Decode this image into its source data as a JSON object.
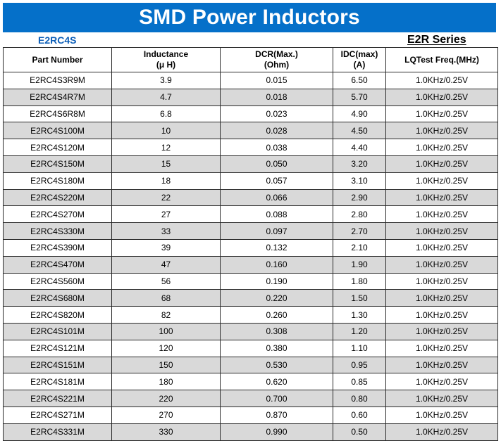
{
  "header": {
    "title": "SMD Power Inductors",
    "model": "E2RC4S",
    "series": "E2R Series"
  },
  "colors": {
    "banner": "#0570c9",
    "model_text": "#0d5fb8",
    "row_shade": "#d9d9d9"
  },
  "table": {
    "columns": [
      {
        "line1": "Part Number",
        "line2": ""
      },
      {
        "line1": "Inductance",
        "line2": "(μ H)"
      },
      {
        "line1": "DCR(Max.)",
        "line2": "(Ohm)"
      },
      {
        "line1": "IDC(max)",
        "line2": "(A)"
      },
      {
        "line1": "LQTest Freq.(MHz)",
        "line2": ""
      }
    ],
    "rows": [
      [
        "E2RC4S3R9M",
        "3.9",
        "0.015",
        "6.50",
        "1.0KHz/0.25V"
      ],
      [
        "E2RC4S4R7M",
        "4.7",
        "0.018",
        "5.70",
        "1.0KHz/0.25V"
      ],
      [
        "E2RC4S6R8M",
        "6.8",
        "0.023",
        "4.90",
        "1.0KHz/0.25V"
      ],
      [
        "E2RC4S100M",
        "10",
        "0.028",
        "4.50",
        "1.0KHz/0.25V"
      ],
      [
        "E2RC4S120M",
        "12",
        "0.038",
        "4.40",
        "1.0KHz/0.25V"
      ],
      [
        "E2RC4S150M",
        "15",
        "0.050",
        "3.20",
        "1.0KHz/0.25V"
      ],
      [
        "E2RC4S180M",
        "18",
        "0.057",
        "3.10",
        "1.0KHz/0.25V"
      ],
      [
        "E2RC4S220M",
        "22",
        "0.066",
        "2.90",
        "1.0KHz/0.25V"
      ],
      [
        "E2RC4S270M",
        "27",
        "0.088",
        "2.80",
        "1.0KHz/0.25V"
      ],
      [
        "E2RC4S330M",
        "33",
        "0.097",
        "2.70",
        "1.0KHz/0.25V"
      ],
      [
        "E2RC4S390M",
        "39",
        "0.132",
        "2.10",
        "1.0KHz/0.25V"
      ],
      [
        "E2RC4S470M",
        "47",
        "0.160",
        "1.90",
        "1.0KHz/0.25V"
      ],
      [
        "E2RC4S560M",
        "56",
        "0.190",
        "1.80",
        "1.0KHz/0.25V"
      ],
      [
        "E2RC4S680M",
        "68",
        "0.220",
        "1.50",
        "1.0KHz/0.25V"
      ],
      [
        "E2RC4S820M",
        "82",
        "0.260",
        "1.30",
        "1.0KHz/0.25V"
      ],
      [
        "E2RC4S101M",
        "100",
        "0.308",
        "1.20",
        "1.0KHz/0.25V"
      ],
      [
        "E2RC4S121M",
        "120",
        "0.380",
        "1.10",
        "1.0KHz/0.25V"
      ],
      [
        "E2RC4S151M",
        "150",
        "0.530",
        "0.95",
        "1.0KHz/0.25V"
      ],
      [
        "E2RC4S181M",
        "180",
        "0.620",
        "0.85",
        "1.0KHz/0.25V"
      ],
      [
        "E2RC4S221M",
        "220",
        "0.700",
        "0.80",
        "1.0KHz/0.25V"
      ],
      [
        "E2RC4S271M",
        "270",
        "0.870",
        "0.60",
        "1.0KHz/0.25V"
      ],
      [
        "E2RC4S331M",
        "330",
        "0.990",
        "0.50",
        "1.0KHz/0.25V"
      ]
    ]
  }
}
